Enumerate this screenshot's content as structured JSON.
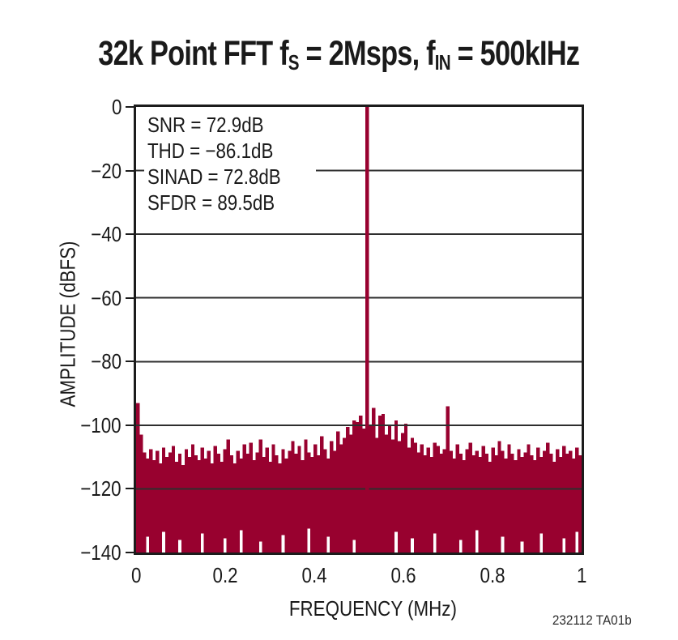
{
  "title": {
    "prefix": "32k Point FFT f",
    "sub1": "S",
    "mid": " = 2Msps, f",
    "sub2": "IN",
    "suffix": " = 500kIHz"
  },
  "stats": {
    "lines": [
      "SNR = 72.9dB",
      "THD = −86.1dB",
      "SINAD = 72.8dB",
      "SFDR = 89.5dB"
    ]
  },
  "footnote": "232112 TA01b",
  "colors": {
    "bar": "#98012F",
    "grid": "#2e2e2e",
    "frame": "#1c1c1c",
    "text": "#1a1a1a"
  },
  "chart_data": {
    "type": "bar",
    "title": "32k Point FFT fS = 2Msps, fIN = 500kIHz",
    "xlabel": "FREQUENCY (MHz)",
    "ylabel": "AMPLITUDE (dBFS)",
    "xlim": [
      0,
      1
    ],
    "ylim": [
      -140,
      0
    ],
    "grid": "horizontal",
    "x_ticks": [
      0,
      0.2,
      0.4,
      0.6,
      0.8,
      1
    ],
    "x_tick_labels": [
      "0",
      "0.2",
      "0.4",
      "0.6",
      "0.8",
      "1"
    ],
    "y_ticks": [
      0,
      -20,
      -40,
      -60,
      -80,
      -100,
      -120,
      -140
    ],
    "y_tick_labels": [
      "0",
      "−20",
      "−40",
      "−60",
      "−80",
      "−100",
      "−120",
      "−140"
    ],
    "annotations": [
      "SNR = 72.9dB",
      "THD = −86.1dB",
      "SINAD = 72.8dB",
      "SFDR = 89.5dB"
    ],
    "fundamental": {
      "freq_mhz": 0.5,
      "amplitude_dbfs": 0
    },
    "spurs": [
      {
        "freq_mhz": 0.0,
        "db": -93
      },
      {
        "freq_mhz": 0.53,
        "db": -94.5
      },
      {
        "freq_mhz": 0.7,
        "db": -94
      }
    ],
    "noise_floor_avg_db": -110,
    "bins": {
      "count": 138,
      "bottom_default_db": -140,
      "top_db": [
        -93,
        -103,
        -108.5,
        -110.5,
        -107.5,
        -111,
        -108,
        -112,
        -107,
        -110,
        -108.5,
        -106.5,
        -111.5,
        -109,
        -112.5,
        -107.5,
        -110,
        -106,
        -109.5,
        -111,
        -107,
        -110.5,
        -108,
        -112,
        -106.5,
        -109,
        -111.5,
        -107.5,
        -104.5,
        -109.5,
        -112,
        -108,
        -110.5,
        -106,
        -109,
        -105.5,
        -111,
        -108.5,
        -104.5,
        -110,
        -107,
        -111.5,
        -106,
        -109.5,
        -112,
        -107.5,
        -110.5,
        -108,
        -105,
        -109,
        -106.5,
        -111,
        -104.5,
        -108.5,
        -110,
        -106,
        -109.5,
        -103.5,
        -107.5,
        -110.5,
        -105,
        -108,
        -102,
        -106,
        -104,
        -100.5,
        -103,
        -98.5,
        -99,
        -97,
        -101,
        0,
        -100,
        -94.5,
        -104,
        -97,
        -96.5,
        -103,
        -100,
        -104.5,
        -98.5,
        -105,
        -102.5,
        -99.5,
        -107,
        -104,
        -105.5,
        -108.5,
        -106,
        -109.5,
        -107,
        -110,
        -105.5,
        -106.5,
        -109,
        -107.5,
        -94,
        -108,
        -110.5,
        -106,
        -109,
        -111,
        -107.5,
        -105.5,
        -109.5,
        -108,
        -110,
        -106.5,
        -109,
        -111.5,
        -107,
        -109.5,
        -105,
        -108,
        -110.5,
        -106,
        -109,
        -111,
        -107.5,
        -110,
        -108.5,
        -106,
        -109.5,
        -111,
        -107,
        -110,
        -108,
        -105.5,
        -109,
        -111.5,
        -107.5,
        -110,
        -106.5,
        -109,
        -108,
        -110.5,
        -107,
        -109.5
      ],
      "raised_bottoms": {
        "3": -135,
        "8": -133.5,
        "13": -136,
        "20": -134,
        "27": -135.5,
        "32": -133,
        "38": -136.5,
        "45": -134.5,
        "53": -132.5,
        "59": -135,
        "67": -136,
        "80": -133.5,
        "85": -135.5,
        "92": -134,
        "100": -136,
        "105": -133,
        "113": -135,
        "119": -136.5,
        "125": -134,
        "132": -135.5,
        "136": -133.5
      }
    }
  }
}
